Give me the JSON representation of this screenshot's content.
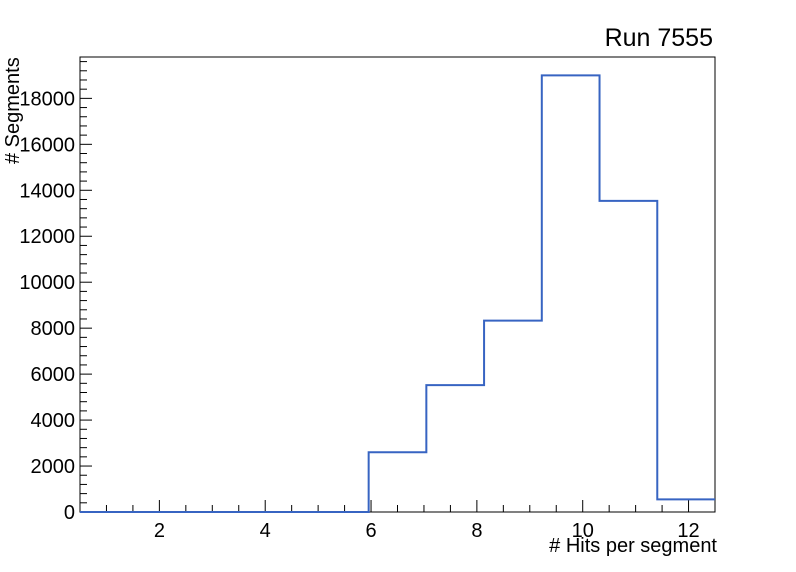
{
  "chart_data": {
    "type": "step-histogram",
    "title": "Run 7555",
    "xlabel": "# Hits per segment",
    "ylabel": "# Segments",
    "xlim": [
      0.5,
      12.5
    ],
    "ylim": [
      0,
      19800
    ],
    "n_bins": 11,
    "bin_edges": [
      0.5,
      1.591,
      2.682,
      3.773,
      4.864,
      5.955,
      7.045,
      8.136,
      9.227,
      10.318,
      11.409,
      12.5
    ],
    "counts": [
      0,
      0,
      0,
      0,
      0,
      2600,
      5520,
      8330,
      19000,
      13540,
      550
    ],
    "x_major_ticks": [
      2,
      4,
      6,
      8,
      10,
      12
    ],
    "x_minor_step": 0.5,
    "y_major_ticks": [
      0,
      2000,
      4000,
      6000,
      8000,
      10000,
      12000,
      14000,
      16000,
      18000
    ],
    "y_minor_step": 400,
    "line_color": "#3764c2",
    "frame_color": "#000000",
    "background": "#ffffff",
    "grid": false,
    "legend": null
  }
}
